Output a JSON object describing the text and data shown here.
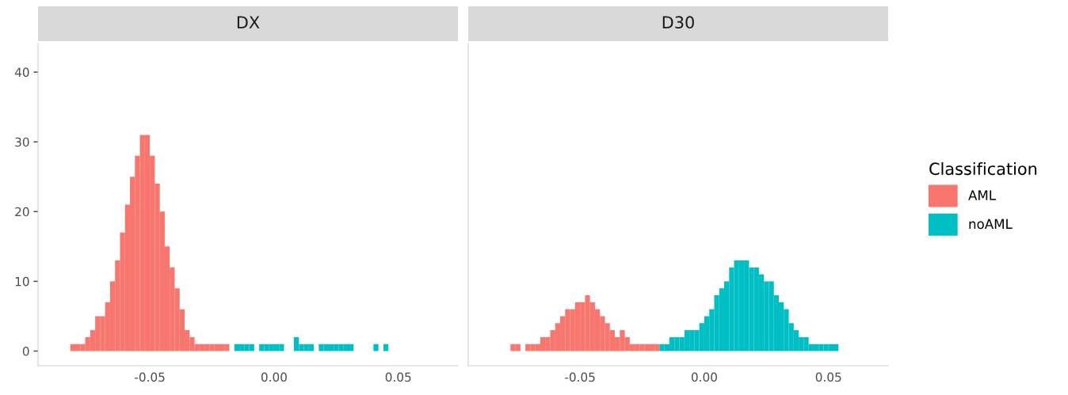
{
  "chart_data": [
    {
      "type": "histogram",
      "title": "DX",
      "xlim": [
        -0.095,
        0.074
      ],
      "xticks": [
        {
          "value": -0.05,
          "label": "-0.05"
        },
        {
          "value": 0,
          "label": "0.00"
        },
        {
          "value": 0.05,
          "label": "0.05"
        }
      ],
      "ylim": [
        -2.1,
        44.1
      ],
      "yticks": [
        0,
        10,
        20,
        30,
        40
      ],
      "grid": false,
      "bins": [
        -0.082,
        -0.08,
        -0.078,
        -0.076,
        -0.074,
        -0.072,
        -0.07,
        -0.068,
        -0.066,
        -0.064,
        -0.062,
        -0.06,
        -0.058,
        -0.056,
        -0.054,
        -0.052,
        -0.05,
        -0.048,
        -0.046,
        -0.044,
        -0.042,
        -0.04,
        -0.038,
        -0.036,
        -0.034,
        -0.032,
        -0.03,
        -0.028,
        -0.026,
        -0.024,
        -0.022,
        -0.02,
        -0.018,
        -0.016,
        -0.014,
        -0.012,
        -0.01,
        -0.008,
        -0.006,
        -0.004,
        -0.002,
        0,
        0.002,
        0.004,
        0.006,
        0.008,
        0.01,
        0.012,
        0.014,
        0.016,
        0.018,
        0.02,
        0.022,
        0.024,
        0.026,
        0.028,
        0.03,
        0.032,
        0.034,
        0.036,
        0.038,
        0.04,
        0.042,
        0.044,
        0.046
      ],
      "series": [
        {
          "color": "#f8766d",
          "values": [
            1,
            1,
            1,
            2,
            3,
            5,
            5,
            7,
            10,
            13,
            17,
            21,
            25,
            28,
            31,
            31,
            28,
            24,
            20,
            15,
            12,
            9,
            6,
            3,
            2,
            1,
            1,
            1,
            1,
            1,
            1,
            1,
            null,
            null,
            null,
            null,
            null,
            null,
            null,
            null,
            null,
            null,
            null,
            null,
            null,
            null,
            null,
            null,
            null,
            null,
            null,
            null,
            null,
            null,
            null,
            null,
            null,
            null,
            null,
            null,
            null,
            null,
            null,
            null
          ]
        },
        {
          "color": "#00bfc4",
          "values": [
            null,
            null,
            null,
            null,
            null,
            null,
            null,
            null,
            null,
            null,
            null,
            null,
            null,
            null,
            null,
            null,
            null,
            null,
            null,
            null,
            null,
            null,
            null,
            null,
            null,
            null,
            null,
            null,
            null,
            null,
            null,
            null,
            null,
            1,
            1,
            1,
            1,
            0,
            1,
            1,
            1,
            1,
            1,
            0,
            0,
            2,
            1,
            1,
            1,
            0,
            1,
            1,
            1,
            1,
            1,
            1,
            1,
            0,
            0,
            0,
            0,
            1,
            0,
            1
          ]
        }
      ]
    },
    {
      "type": "histogram",
      "title": "D30",
      "xlim": [
        -0.095,
        0.074
      ],
      "xticks": [
        {
          "value": -0.05,
          "label": "-0.05"
        },
        {
          "value": 0,
          "label": "0.00"
        },
        {
          "value": 0.05,
          "label": "0.05"
        }
      ],
      "ylim": [
        -2.1,
        44.1
      ],
      "yticks": [
        0,
        10,
        20,
        30,
        40
      ],
      "tick_labels": "x",
      "grid": false,
      "legend": "right",
      "legend_title": "Classification",
      "bins": [
        -0.078,
        -0.076,
        -0.074,
        -0.072,
        -0.07,
        -0.068,
        -0.066,
        -0.064,
        -0.062,
        -0.06,
        -0.058,
        -0.056,
        -0.054,
        -0.052,
        -0.05,
        -0.048,
        -0.046,
        -0.044,
        -0.042,
        -0.04,
        -0.038,
        -0.036,
        -0.034,
        -0.032,
        -0.03,
        -0.028,
        -0.026,
        -0.024,
        -0.022,
        -0.02,
        -0.018,
        -0.016,
        -0.014,
        -0.012,
        -0.01,
        -0.008,
        -0.006,
        -0.004,
        -0.002,
        0,
        0.002,
        0.004,
        0.006,
        0.008,
        0.01,
        0.012,
        0.014,
        0.016,
        0.018,
        0.02,
        0.022,
        0.024,
        0.026,
        0.028,
        0.03,
        0.032,
        0.034,
        0.036,
        0.038,
        0.04,
        0.042,
        0.044,
        0.046,
        0.048,
        0.05,
        0.052,
        0.054
      ],
      "series": [
        {
          "name": "AML",
          "color": "#f8766d",
          "values": [
            1,
            1,
            0,
            1,
            1,
            1,
            2,
            2,
            3,
            4,
            5,
            6,
            6,
            7,
            7,
            8,
            7,
            6,
            5,
            4,
            3,
            2,
            3,
            2,
            1,
            1,
            1,
            1,
            1,
            1,
            null,
            null,
            null,
            null,
            null,
            null,
            null,
            null,
            null,
            null,
            null,
            null,
            null,
            null,
            null,
            null,
            null,
            null,
            null,
            null,
            null,
            null,
            null,
            null,
            null,
            null,
            null,
            null,
            null,
            null,
            null,
            null,
            null,
            null,
            null,
            null
          ]
        },
        {
          "name": "noAML",
          "color": "#00bfc4",
          "values": [
            null,
            null,
            null,
            null,
            null,
            null,
            null,
            null,
            null,
            null,
            null,
            null,
            null,
            null,
            null,
            null,
            null,
            null,
            null,
            null,
            null,
            null,
            null,
            null,
            null,
            null,
            null,
            null,
            null,
            null,
            1,
            1,
            2,
            2,
            2,
            3,
            3,
            3,
            4,
            5,
            6,
            8,
            9,
            10,
            12,
            13,
            13,
            13,
            12,
            12,
            11,
            10,
            10,
            8,
            7,
            6,
            4,
            3,
            2,
            2,
            1,
            1,
            1,
            1,
            1,
            1
          ]
        }
      ]
    }
  ]
}
